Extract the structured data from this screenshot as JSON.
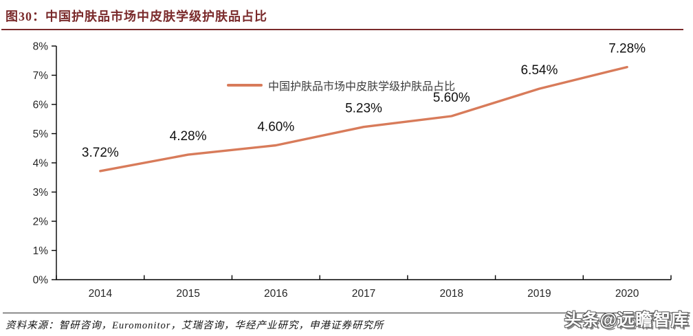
{
  "header": {
    "title": "图30：中国护肤品市场中皮肤学级护肤品占比"
  },
  "chart_data": {
    "type": "line",
    "categories": [
      "2014",
      "2015",
      "2016",
      "2017",
      "2018",
      "2019",
      "2020"
    ],
    "series": [
      {
        "name": "中国护肤品市场中皮肤学级护肤品占比",
        "values": [
          3.72,
          4.28,
          4.6,
          5.23,
          5.6,
          6.54,
          7.28
        ],
        "labels": [
          "3.72%",
          "4.28%",
          "4.60%",
          "5.23%",
          "5.60%",
          "6.54%",
          "7.28%"
        ]
      }
    ],
    "title": "中国护肤品市场中皮肤学级护肤品占比",
    "xlabel": "",
    "ylabel": "",
    "ylim": [
      0,
      8
    ],
    "y_tick_labels": [
      "0%",
      "1%",
      "2%",
      "3%",
      "4%",
      "5%",
      "6%",
      "7%",
      "8%"
    ],
    "legend_position": "top-center",
    "grid": false,
    "line_color": "#d87b5a"
  },
  "footer": {
    "source": "资料来源：智研咨询，Euromonitor，艾瑞咨询，华经产业研究，申港证券研究所"
  },
  "watermark": {
    "text": "头条@远瞻智库"
  },
  "colors": {
    "title": "#7a2a2b",
    "line": "#d87b5a",
    "axis": "#000000",
    "data_label": "#111111",
    "tick_label": "#262626"
  }
}
